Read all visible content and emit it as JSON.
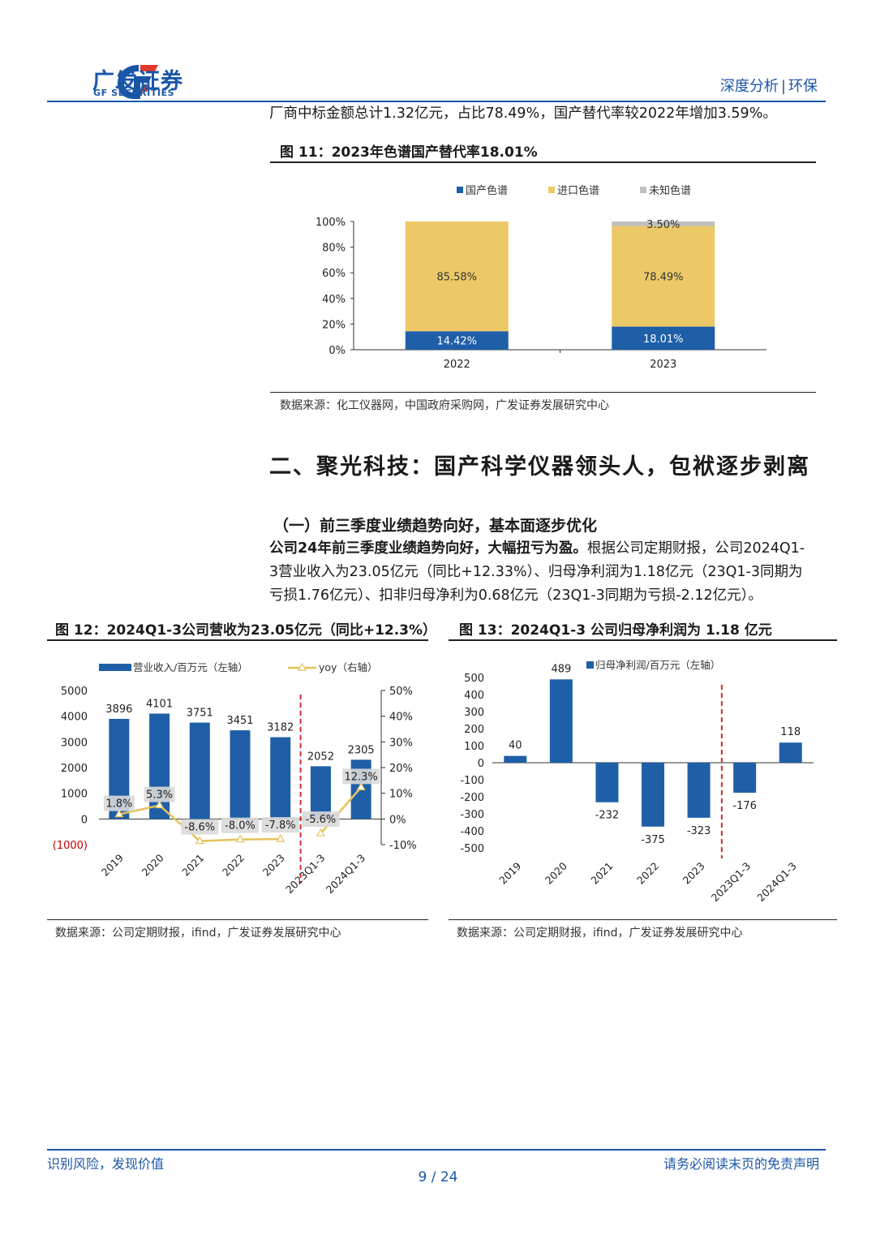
{
  "header": {
    "brand_cn": "广发证券",
    "brand_en": "GF SECURITIES",
    "report_type": "深度分析",
    "separator": "|",
    "industry": "环保"
  },
  "intro_line": "厂商中标金额总计1.32亿元，占比78.49%，国产替代率较2022年增加3.59%。",
  "fig11": {
    "title": "图 11：2023年色谱国产替代率18.01%",
    "source": "数据来源：化工仪器网，中国政府采购网，广发证券发展研究中心"
  },
  "section_title": "二、聚光科技：国产科学仪器领头人，包袱逐步剥离",
  "subsection_title": "（一）前三季度业绩趋势向好，基本面逐步优化",
  "paragraph": {
    "bold_lead": "公司24年前三季度业绩趋势向好，大幅扭亏为盈。",
    "line1_rest": "根据公司定期财报，公司2024Q1-",
    "line2": "3营业收入为23.05亿元（同比+12.33%）、归母净利润为1.18亿元（23Q1-3同期为",
    "line3": "亏损1.76亿元）、扣非归母净利为0.68亿元（23Q1-3同期为亏损-2.12亿元）。"
  },
  "fig12": {
    "title": "图 12：2024Q1-3公司营收为23.05亿元（同比+12.3%）",
    "source": "数据来源：公司定期财报，ifind，广发证券发展研究中心"
  },
  "fig13": {
    "title": "图 13：2024Q1-3 公司归母净利润为 1.18 亿元",
    "source": "数据来源：公司定期财报，ifind，广发证券发展研究中心"
  },
  "footer": {
    "left": "识别风险，发现价值",
    "right": "请务必阅读末页的免责声明",
    "page": "9 / 24"
  },
  "colors": {
    "brand_blue": "#1a56a8",
    "bar_blue": "#1f5fa8",
    "bar_yellow": "#ecc966",
    "bar_gray": "#bfbfbf",
    "line_yellow": "#e6c25a",
    "divider_red": "#d62b2b"
  },
  "chart_data": [
    {
      "id": "fig11",
      "type": "bar",
      "stacked": true,
      "categories": [
        "2022",
        "2023"
      ],
      "series": [
        {
          "name": "国产色谱",
          "values": [
            14.42,
            18.01
          ],
          "labels": [
            "14.42%",
            "18.01%"
          ]
        },
        {
          "name": "进口色谱",
          "values": [
            85.58,
            78.49
          ],
          "labels": [
            "85.58%",
            "78.49%"
          ]
        },
        {
          "name": "未知色谱",
          "values": [
            0,
            3.5
          ],
          "labels": [
            "",
            "3.50%"
          ]
        }
      ],
      "yticks": [
        "0%",
        "20%",
        "40%",
        "60%",
        "80%",
        "100%"
      ],
      "ylim": [
        0,
        100
      ],
      "legend": "top"
    },
    {
      "id": "fig12",
      "type": "bar",
      "categories": [
        "2019",
        "2020",
        "2021",
        "2022",
        "2023",
        "2023Q1-3",
        "2024Q1-3"
      ],
      "series": [
        {
          "name": "营业收入/百万元（左轴）",
          "type": "bar",
          "values": [
            3896,
            4101,
            3751,
            3451,
            3182,
            2052,
            2305
          ]
        },
        {
          "name": "yoy（右轴）",
          "type": "line",
          "values": [
            1.8,
            5.3,
            -8.6,
            -8.0,
            -7.8,
            -5.6,
            12.3
          ],
          "labels": [
            "1.8%",
            "5.3%",
            "-8.6%",
            "-8.0%",
            "-7.8%",
            "-5.6%",
            "12.3%"
          ]
        }
      ],
      "yticks_left": [
        "(1000)",
        "0",
        "1000",
        "2000",
        "3000",
        "4000",
        "5000"
      ],
      "ylim_left": [
        -1000,
        5000
      ],
      "yticks_right": [
        "-10%",
        "0%",
        "10%",
        "20%",
        "30%",
        "40%",
        "50%"
      ],
      "ylim_right": [
        -10,
        50
      ],
      "line_segments": [
        [
          0,
          4
        ],
        [
          5,
          6
        ]
      ],
      "divider_after_index": 4,
      "legend": "top"
    },
    {
      "id": "fig13",
      "type": "bar",
      "categories": [
        "2019",
        "2020",
        "2021",
        "2022",
        "2023",
        "2023Q1-3",
        "2024Q1-3"
      ],
      "series": [
        {
          "name": "归母净利润/百万元（左轴）",
          "values": [
            40,
            489,
            -232,
            -375,
            -323,
            -176,
            118
          ]
        }
      ],
      "yticks": [
        "-500",
        "-400",
        "-300",
        "-200",
        "-100",
        "0",
        "100",
        "200",
        "300",
        "400",
        "500"
      ],
      "ylim": [
        -500,
        500
      ],
      "divider_after_index": 4,
      "legend": "top"
    }
  ]
}
